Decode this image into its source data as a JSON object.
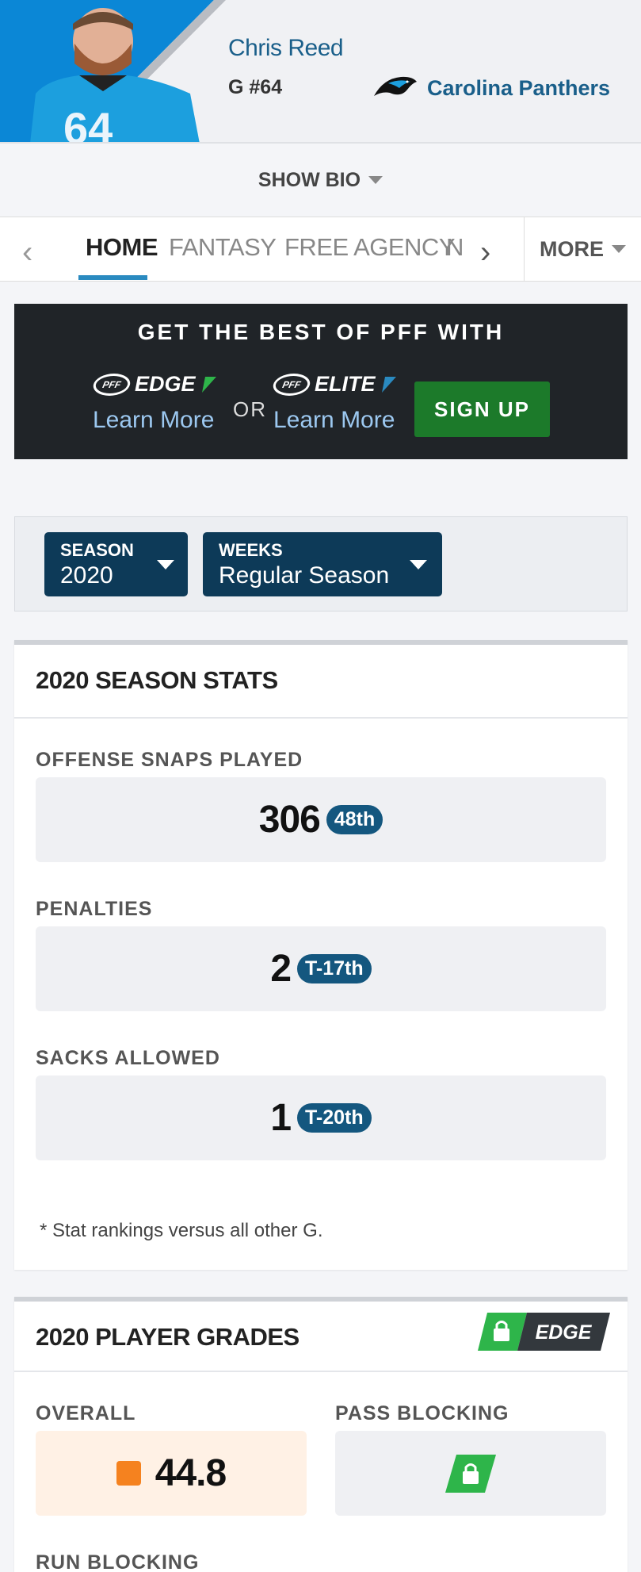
{
  "player": {
    "name": "Chris Reed",
    "position": "G #64",
    "team": "Carolina Panthers",
    "jersey_number": "64"
  },
  "bio_toggle": "SHOW BIO",
  "tabs": {
    "items": [
      "HOME",
      "FANTASY",
      "FREE AGENCY",
      "N"
    ],
    "active": "HOME",
    "more": "MORE"
  },
  "promo": {
    "title": "GET THE BEST OF PFF WITH",
    "edge_label": "EDGE",
    "elite_label": "ELITE",
    "pff_mark": "PFF",
    "learn_more": "Learn More",
    "or": "OR",
    "signup": "SIGN UP"
  },
  "filters": {
    "season": {
      "label": "SEASON",
      "value": "2020"
    },
    "weeks": {
      "label": "WEEKS",
      "value": "Regular Season"
    }
  },
  "season_stats": {
    "title": "2020 SEASON STATS",
    "stats": [
      {
        "label": "OFFENSE SNAPS PLAYED",
        "value": "306",
        "rank": "48th"
      },
      {
        "label": "PENALTIES",
        "value": "2",
        "rank": "T-17th"
      },
      {
        "label": "SACKS ALLOWED",
        "value": "1",
        "rank": "T-20th"
      }
    ],
    "footnote": "* Stat rankings versus all other G."
  },
  "player_grades": {
    "title": "2020 PLAYER GRADES",
    "badge": "EDGE",
    "overall": {
      "label": "OVERALL",
      "value": "44.8"
    },
    "pass_blocking": {
      "label": "PASS BLOCKING"
    },
    "run_blocking": {
      "label": "RUN BLOCKING"
    }
  },
  "colors": {
    "accent_blue": "#1a5f8a",
    "rank_badge": "#14577f",
    "signup_green": "#1c7a2a",
    "grade_orange": "#f5821f",
    "edge_green": "#2eb54a"
  }
}
